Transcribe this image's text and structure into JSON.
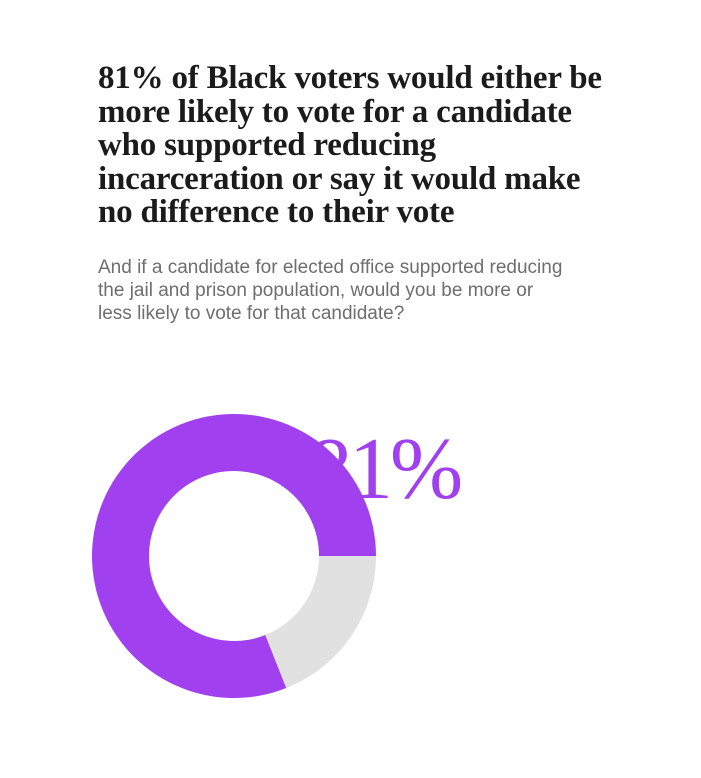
{
  "headline": "81% of Black voters would either be more likely to vote for a candidate who supported reducing incarceration or say it would make no difference to their vote",
  "question": "And if a candidate for elected office supported reducing the jail and prison population, would you be more or less likely to vote for that candidate?",
  "colors": {
    "primary": "#a040ef",
    "remainder": "#e1e1e1",
    "headline": "#1b1b1b",
    "subtitle": "#6e6e6e"
  },
  "chart_data": {
    "type": "pie",
    "variant": "donut",
    "values": [
      81,
      19
    ],
    "unit": "%",
    "center_label": "81%",
    "title": "81% of Black voters would either be more likely to vote for a candidate who supported reducing incarceration or say it would make no difference to their vote",
    "subtitle": "And if a candidate for elected office supported reducing the jail and prison population, would you be more or less likely to vote for that candidate?"
  }
}
